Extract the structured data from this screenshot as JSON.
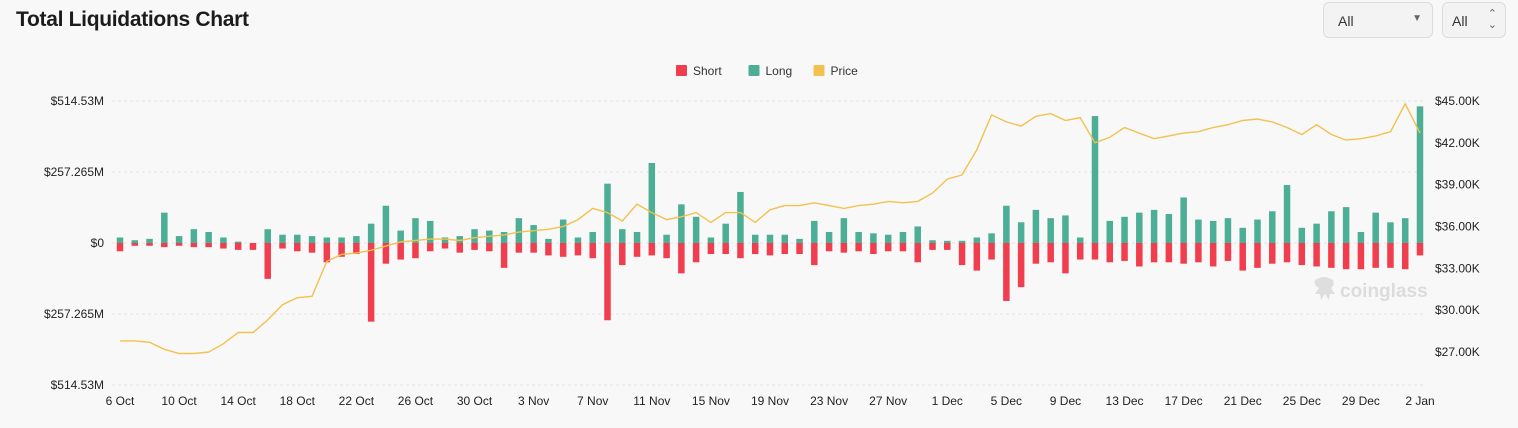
{
  "header": {
    "title": "Total Liquidations Chart",
    "select_coin": "All",
    "select_range": "All"
  },
  "watermark": "coinglass",
  "chart_data": {
    "type": "bar+line",
    "title": "Total Liquidations Chart",
    "legend": [
      {
        "name": "Short",
        "color": "#f03e4e"
      },
      {
        "name": "Long",
        "color": "#4bae95"
      },
      {
        "name": "Price",
        "color": "#f2c14e"
      }
    ],
    "legend_position": "top-center",
    "grid": true,
    "left_axis": {
      "range": [
        -514530000,
        514530000
      ],
      "ticks": [
        514530000,
        257265000,
        0,
        -257265000,
        -514530000
      ],
      "tick_labels": [
        "$514.53M",
        "$257.265M",
        "$0",
        "$257.265M",
        "$514.53M"
      ]
    },
    "right_axis": {
      "range": [
        25500,
        45000
      ],
      "ticks": [
        45000,
        42000,
        39000,
        36000,
        33000,
        30000,
        27000
      ],
      "tick_labels": [
        "$45.00K",
        "$42.00K",
        "$39.00K",
        "$36.00K",
        "$33.00K",
        "$30.00K",
        "$27.00K"
      ]
    },
    "x_tick_labels": [
      "6 Oct",
      "10 Oct",
      "14 Oct",
      "18 Oct",
      "22 Oct",
      "26 Oct",
      "30 Oct",
      "3 Nov",
      "7 Nov",
      "11 Nov",
      "15 Nov",
      "19 Nov",
      "23 Nov",
      "27 Nov",
      "1 Dec",
      "5 Dec",
      "9 Dec",
      "13 Dec",
      "17 Dec",
      "21 Dec",
      "25 Dec",
      "29 Dec",
      "2 Jan"
    ],
    "x_tick_index": [
      0,
      4,
      8,
      12,
      16,
      20,
      24,
      28,
      32,
      36,
      40,
      44,
      48,
      52,
      56,
      60,
      64,
      68,
      72,
      76,
      80,
      84,
      88
    ],
    "series": [
      {
        "name": "Long",
        "unit": "USD millions",
        "values": [
          20,
          10,
          15,
          110,
          25,
          50,
          40,
          20,
          5,
          0,
          50,
          30,
          30,
          25,
          20,
          20,
          25,
          70,
          135,
          45,
          90,
          80,
          20,
          25,
          50,
          45,
          40,
          90,
          65,
          15,
          85,
          20,
          40,
          215,
          50,
          40,
          290,
          30,
          140,
          95,
          20,
          70,
          185,
          30,
          30,
          30,
          15,
          80,
          40,
          90,
          40,
          35,
          30,
          40,
          60,
          10,
          8,
          8,
          20,
          35,
          135,
          75,
          120,
          90,
          100,
          20,
          460,
          80,
          95,
          110,
          120,
          105,
          165,
          85,
          80,
          90,
          55,
          85,
          115,
          210,
          55,
          70,
          115,
          130,
          40,
          110,
          75,
          90,
          495
        ]
      },
      {
        "name": "Short",
        "unit": "USD millions",
        "values": [
          -30,
          -10,
          -10,
          -15,
          -10,
          -15,
          -15,
          -20,
          -25,
          -25,
          -130,
          -20,
          -30,
          -35,
          -70,
          -50,
          -40,
          -285,
          -75,
          -60,
          -55,
          -30,
          -20,
          -35,
          -25,
          -30,
          -90,
          -35,
          -35,
          -45,
          -50,
          -45,
          -55,
          -280,
          -80,
          -50,
          -45,
          -55,
          -110,
          -70,
          -40,
          -40,
          -55,
          -40,
          -45,
          -40,
          -40,
          -80,
          -30,
          -35,
          -30,
          -40,
          -30,
          -30,
          -70,
          -25,
          -25,
          -80,
          -100,
          -60,
          -210,
          -160,
          -75,
          -70,
          -110,
          -60,
          -60,
          -70,
          -65,
          -85,
          -70,
          -70,
          -75,
          -70,
          -85,
          -65,
          -100,
          -90,
          -75,
          -70,
          -80,
          -85,
          -90,
          -95,
          -95,
          -90,
          -90,
          -95,
          -45
        ]
      },
      {
        "name": "Price",
        "unit": "USD",
        "values": [
          27800,
          27800,
          27700,
          27200,
          26900,
          26900,
          27000,
          27600,
          28400,
          28400,
          29300,
          30400,
          30900,
          31000,
          33500,
          34000,
          34100,
          34300,
          34600,
          34900,
          35000,
          35100,
          35100,
          35000,
          35200,
          35300,
          35400,
          35600,
          35700,
          35800,
          36000,
          36500,
          37300,
          37000,
          36400,
          37600,
          37000,
          36500,
          36700,
          37000,
          36300,
          37000,
          37000,
          36300,
          37200,
          37500,
          37500,
          37700,
          37500,
          37300,
          37500,
          37600,
          37800,
          37700,
          37800,
          38400,
          39400,
          39700,
          41500,
          44000,
          43500,
          43200,
          43900,
          44100,
          43600,
          43800,
          42000,
          42400,
          43100,
          42700,
          42300,
          42500,
          42700,
          42800,
          43100,
          43300,
          43600,
          43700,
          43500,
          43100,
          42600,
          43300,
          42600,
          42200,
          42300,
          42500,
          42800,
          44800,
          42700
        ]
      }
    ]
  }
}
